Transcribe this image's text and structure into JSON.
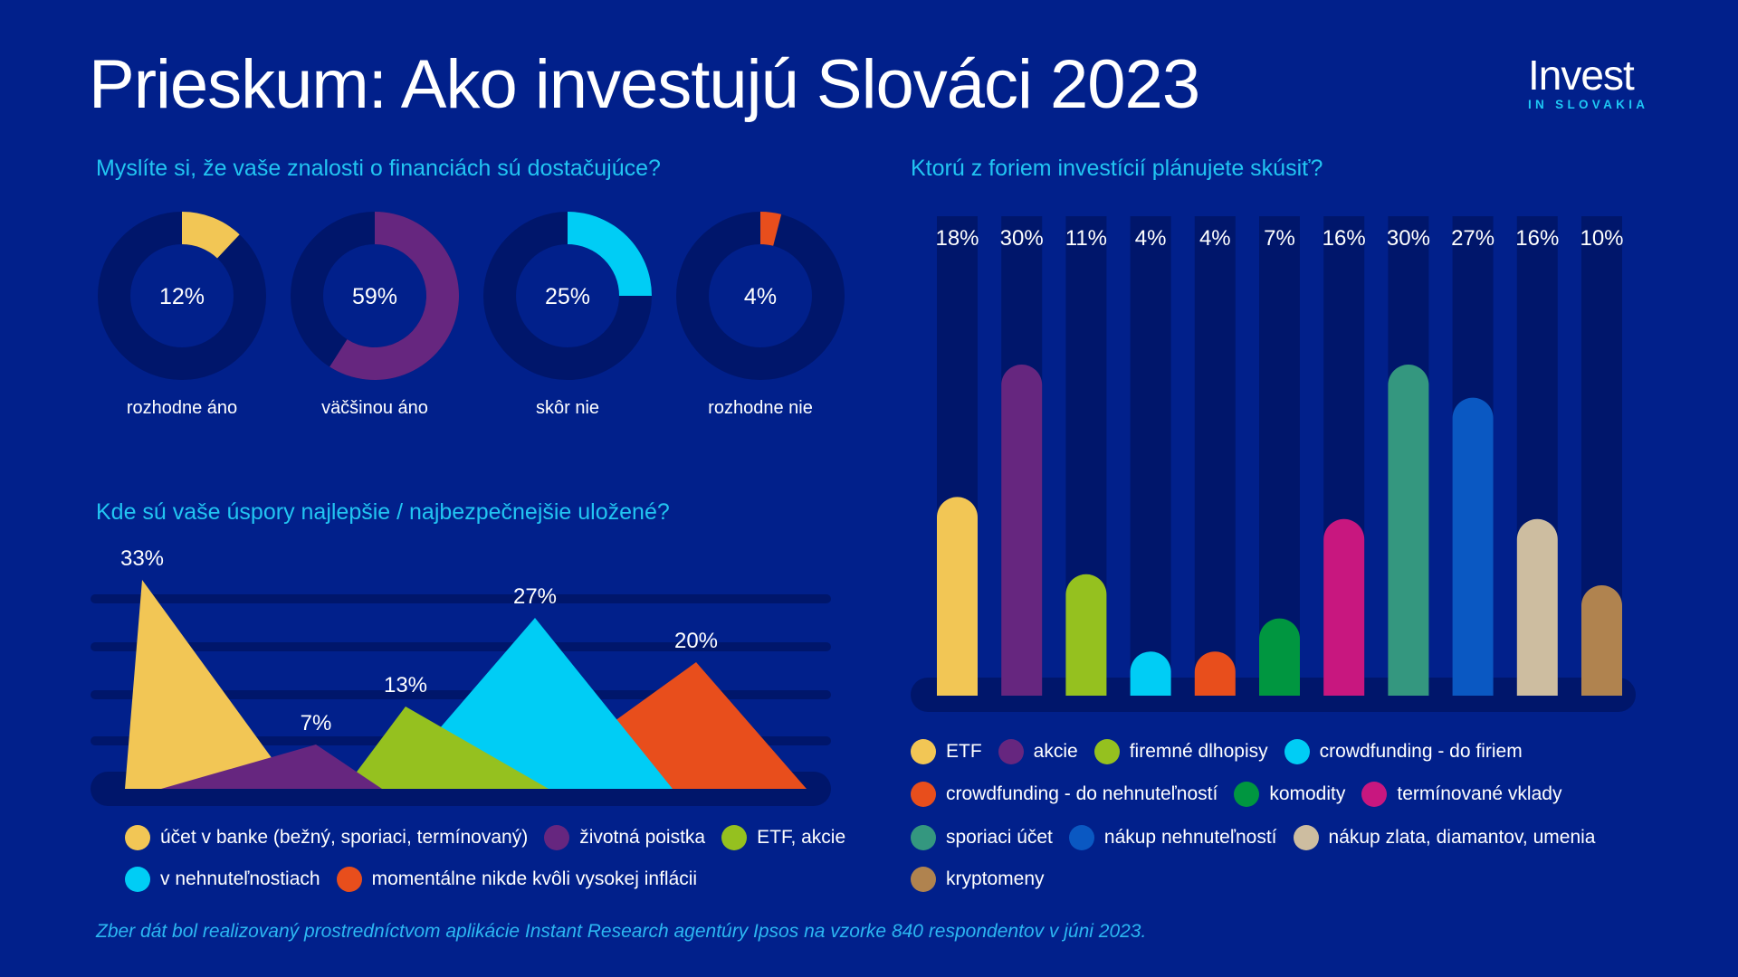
{
  "title": "Prieskum: Ako investujú Slováci 2023",
  "logo": {
    "main": "Invest",
    "sub": "IN SLOVAKIA"
  },
  "footer": "Zber dát bol realizovaný prostredníctvom aplikácie Instant Research agentúry Ipsos na vzorke 840 respondentov v júni 2023.",
  "colors": {
    "background": "#01208b",
    "track": "#00166b",
    "heading": "#22c5f2"
  },
  "chart_data": [
    {
      "type": "pie",
      "subtype": "donut",
      "title": "Myslíte si, že vaše znalosti o financiách sú dostačujúce?",
      "categories": [
        "rozhodne áno",
        "väčšinou áno",
        "skôr nie",
        "rozhodne nie"
      ],
      "values": [
        12,
        59,
        25,
        4
      ],
      "labels": [
        "12%",
        "59%",
        "25%",
        "4%"
      ],
      "colors": [
        "#f2c655",
        "#66267f",
        "#00cdf5",
        "#e84e1c"
      ]
    },
    {
      "type": "area",
      "subtype": "triangles",
      "title": "Kde sú vaše úspory najlepšie / najbezpečnejšie uložené?",
      "categories": [
        "účet v banke (bežný, sporiaci, termínovaný)",
        "životná poistka",
        "ETF, akcie",
        "v nehnuteľnostiach",
        "momentálne nikde kvôli vysokej inflácii"
      ],
      "values": [
        33,
        7,
        13,
        27,
        20
      ],
      "labels": [
        "33%",
        "7%",
        "13%",
        "27%",
        "20%"
      ],
      "colors": [
        "#f2c655",
        "#66267f",
        "#95c11f",
        "#00cdf5",
        "#e84e1c"
      ],
      "grid": true,
      "ylim": [
        0,
        35
      ],
      "legend": "bottom"
    },
    {
      "type": "bar",
      "title": "Ktorú z foriem investícií plánujete skúsiť?",
      "categories": [
        "ETF",
        "akcie",
        "firemné dlhopisy",
        "crowdfunding - do firiem",
        "crowdfunding - do nehnuteľností",
        "komodity",
        "termínované vklady",
        "sporiaci účet",
        "nákup nehnuteľností",
        "nákup zlata, diamantov, umenia",
        "kryptomeny"
      ],
      "values": [
        18,
        30,
        11,
        4,
        4,
        7,
        16,
        30,
        27,
        16,
        10
      ],
      "labels": [
        "18%",
        "30%",
        "11%",
        "4%",
        "4%",
        "7%",
        "16%",
        "30%",
        "27%",
        "16%",
        "10%"
      ],
      "colors": [
        "#f2c655",
        "#66267f",
        "#95c11f",
        "#00cdf5",
        "#e84e1c",
        "#009640",
        "#c8177f",
        "#34977f",
        "#0a58c2",
        "#cdbda0",
        "#b0834f"
      ],
      "ylim": [
        0,
        35
      ],
      "legend": "bottom"
    }
  ]
}
